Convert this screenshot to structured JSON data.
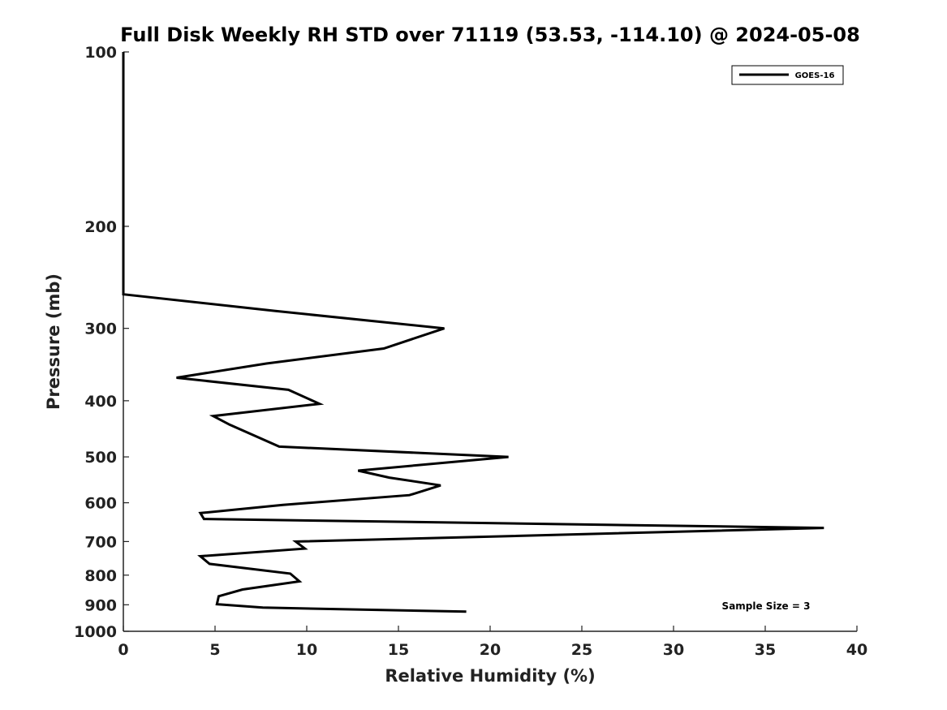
{
  "chart_data": {
    "type": "line",
    "title": "Full Disk Weekly RH STD over 71119 (53.53, -114.10) @ 2024-05-08",
    "xlabel": "Relative Humidity (%)",
    "ylabel": "Pressure (mb)",
    "xlim": [
      0,
      40
    ],
    "ylim": [
      100,
      1000
    ],
    "yscale": "log",
    "y_reversed": true,
    "xticks": [
      0,
      5,
      10,
      15,
      20,
      25,
      30,
      35,
      40
    ],
    "xtick_labels": [
      "0",
      "5",
      "10",
      "15",
      "20",
      "25",
      "30",
      "35",
      "40"
    ],
    "yticks": [
      100,
      200,
      300,
      400,
      500,
      600,
      700,
      800,
      900,
      1000
    ],
    "ytick_labels": [
      "100",
      "200",
      "300",
      "400",
      "500",
      "600",
      "700",
      "800",
      "900",
      "1000"
    ],
    "legend_position": "top-right",
    "annotation": "Sample Size = 3",
    "series": [
      {
        "name": "GOES-16",
        "color": "#000000",
        "points": [
          [
            0,
            100
          ],
          [
            0,
            150
          ],
          [
            0,
            200
          ],
          [
            0,
            250
          ],
          [
            0,
            262
          ],
          [
            8.3,
            280
          ],
          [
            17.5,
            300
          ],
          [
            14.2,
            325
          ],
          [
            7.8,
            345
          ],
          [
            2.9,
            365
          ],
          [
            9.0,
            383
          ],
          [
            10.7,
            405
          ],
          [
            4.9,
            425
          ],
          [
            5.8,
            440
          ],
          [
            8.5,
            480
          ],
          [
            21.0,
            500
          ],
          [
            12.8,
            528
          ],
          [
            14.5,
            543
          ],
          [
            17.3,
            560
          ],
          [
            15.6,
            582
          ],
          [
            8.7,
            605
          ],
          [
            4.2,
            625
          ],
          [
            4.4,
            640
          ],
          [
            38.2,
            663
          ],
          [
            21.0,
            685
          ],
          [
            9.4,
            700
          ],
          [
            9.9,
            720
          ],
          [
            4.2,
            742
          ],
          [
            4.7,
            765
          ],
          [
            9.1,
            795
          ],
          [
            9.6,
            820
          ],
          [
            6.5,
            847
          ],
          [
            5.2,
            870
          ],
          [
            5.1,
            898
          ],
          [
            7.6,
            910
          ],
          [
            18.7,
            925
          ]
        ]
      }
    ]
  }
}
